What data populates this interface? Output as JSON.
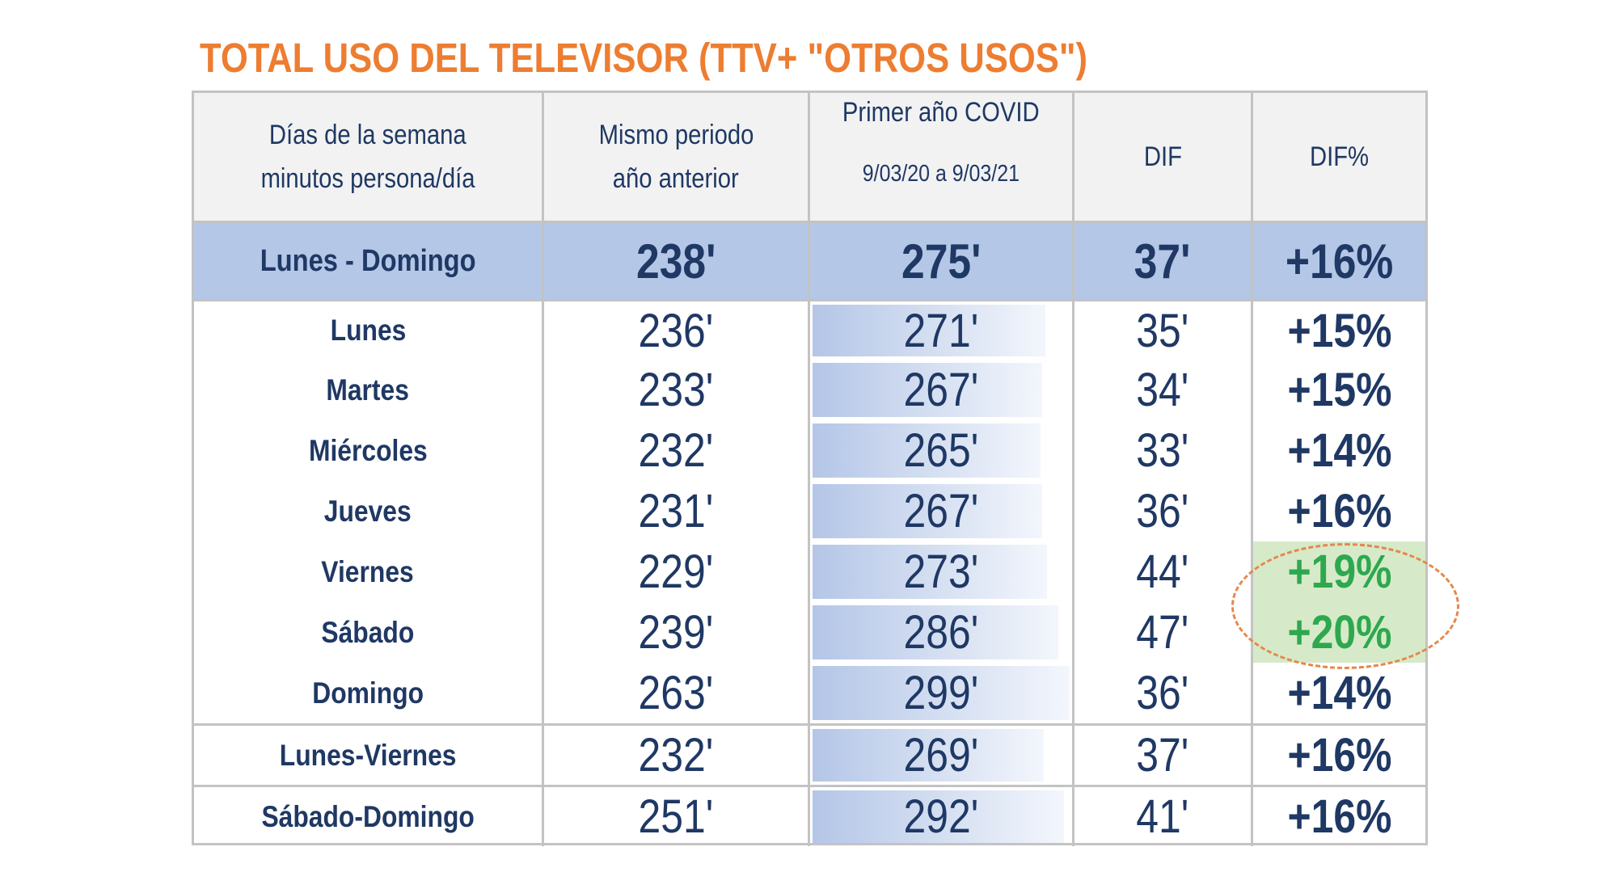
{
  "title": "TOTAL USO DEL TELEVISOR (TTV+ \"OTROS USOS\")",
  "colors": {
    "title": "#ED7D31",
    "text": "#1F3864",
    "header_bg": "#F2F2F2",
    "total_row_bg": "#B4C7E7",
    "highlight_bg": "#D6EAC9",
    "highlight_text": "#2EA84E",
    "ellipse": "#E5884B"
  },
  "table": {
    "headers": {
      "col0": {
        "line1": "Días de la semana",
        "line2": "minutos persona/día"
      },
      "col1": {
        "line1": "Mismo periodo",
        "line2": "año anterior"
      },
      "col2": {
        "line1": "Primer año COVID",
        "line2": "9/03/20  a 9/03/21"
      },
      "col3": {
        "line1": "DIF"
      },
      "col4": {
        "line1": "DIF%"
      }
    },
    "total_row": {
      "label": "Lunes - Domingo",
      "prev": "238'",
      "covid": "275'",
      "dif": "37'",
      "difpct": "+16%"
    },
    "rows": [
      {
        "label": "Lunes",
        "prev": "236'",
        "covid": "271'",
        "covid_value": 271,
        "dif": "35'",
        "difpct": "+15%",
        "highlight": false
      },
      {
        "label": "Martes",
        "prev": "233'",
        "covid": "267'",
        "covid_value": 267,
        "dif": "34'",
        "difpct": "+15%",
        "highlight": false
      },
      {
        "label": "Miércoles",
        "prev": "232'",
        "covid": "265'",
        "covid_value": 265,
        "dif": "33'",
        "difpct": "+14%",
        "highlight": false
      },
      {
        "label": "Jueves",
        "prev": "231'",
        "covid": "267'",
        "covid_value": 267,
        "dif": "36'",
        "difpct": "+16%",
        "highlight": false
      },
      {
        "label": "Viernes",
        "prev": "229'",
        "covid": "273'",
        "covid_value": 273,
        "dif": "44'",
        "difpct": "+19%",
        "highlight": true
      },
      {
        "label": "Sábado",
        "prev": "239'",
        "covid": "286'",
        "covid_value": 286,
        "dif": "47'",
        "difpct": "+20%",
        "highlight": true
      },
      {
        "label": "Domingo",
        "prev": "263'",
        "covid": "299'",
        "covid_value": 299,
        "dif": "36'",
        "difpct": "+14%",
        "highlight": false
      }
    ],
    "summary_rows": [
      {
        "label": "Lunes-Viernes",
        "prev": "232'",
        "covid": "269'",
        "covid_value": 269,
        "dif": "37'",
        "difpct": "+16%"
      },
      {
        "label": "Sábado-Domingo",
        "prev": "251'",
        "covid": "292'",
        "covid_value": 292,
        "dif": "41'",
        "difpct": "+16%"
      }
    ]
  }
}
